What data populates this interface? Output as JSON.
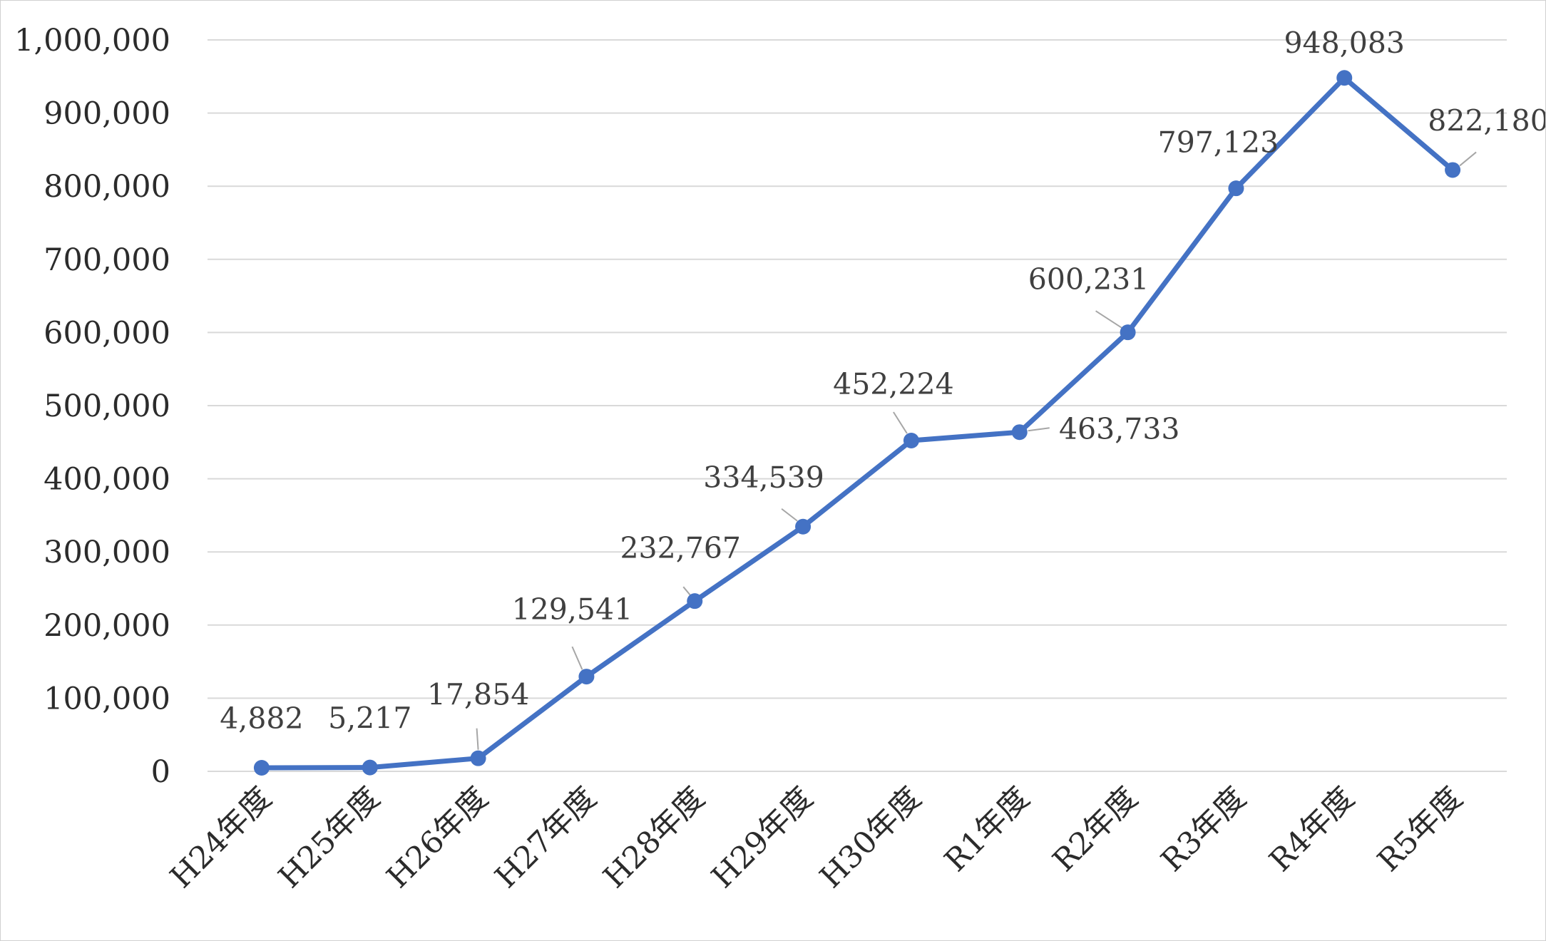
{
  "chart_data": {
    "type": "line",
    "title": "",
    "xlabel": "",
    "ylabel": "",
    "categories": [
      "H24年度",
      "H25年度",
      "H26年度",
      "H27年度",
      "H28年度",
      "H29年度",
      "H30年度",
      "R1年度",
      "R2年度",
      "R3年度",
      "R4年度",
      "R5年度"
    ],
    "series": [
      {
        "values": [
          4882,
          5217,
          17854,
          129541,
          232767,
          334539,
          452224,
          463733,
          600231,
          797123,
          948083,
          822180
        ],
        "data_labels": [
          "4,882",
          "5,217",
          "17,854",
          "129,541",
          "232,767",
          "334,539",
          "452,224",
          "463,733",
          "600,231",
          "797,123",
          "948,083",
          "822,180"
        ],
        "color": "#4472c4"
      }
    ],
    "ylim": [
      0,
      1000000
    ],
    "y_ticks": [
      0,
      100000,
      200000,
      300000,
      400000,
      500000,
      600000,
      700000,
      800000,
      900000,
      1000000
    ],
    "y_tick_labels": [
      "0",
      "100,000",
      "200,000",
      "300,000",
      "400,000",
      "500,000",
      "600,000",
      "700,000",
      "800,000",
      "900,000",
      "1,000,000"
    ],
    "grid": true,
    "legend": "none",
    "gridline_color": "#d9d9d9"
  }
}
